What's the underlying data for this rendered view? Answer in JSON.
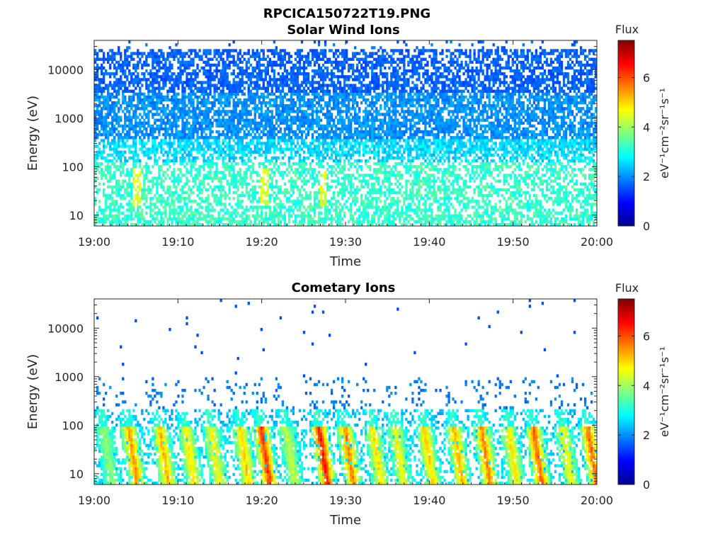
{
  "figure_title": "RPCICA150722T19.PNG",
  "chart_data": [
    {
      "type": "heatmap",
      "title": "Solar Wind Ions",
      "xlabel": "Time",
      "ylabel": "Energy (eV)",
      "x_range": [
        "19:00",
        "20:00"
      ],
      "x_ticks": [
        "19:00",
        "19:10",
        "19:20",
        "19:30",
        "19:40",
        "19:50",
        "20:00"
      ],
      "y_scale": "log",
      "y_range": [
        6,
        40000
      ],
      "y_ticks": [
        "10",
        "100",
        "1000",
        "10000"
      ],
      "colorbar": {
        "title": "Flux",
        "label": "eV⁻¹cm⁻²sr⁻¹s⁻¹",
        "range": [
          0,
          7.5
        ],
        "ticks": [
          "0",
          "2",
          "4",
          "6"
        ],
        "colormap": "jet"
      },
      "description_values": {
        "high_energy_band_flux": 1.5,
        "low_energy_band_flux": 3.2,
        "peak_flux": 4.8
      }
    },
    {
      "type": "heatmap",
      "title": "Cometary Ions",
      "xlabel": "Time",
      "ylabel": "Energy (eV)",
      "x_range": [
        "19:00",
        "20:00"
      ],
      "x_ticks": [
        "19:00",
        "19:10",
        "19:20",
        "19:30",
        "19:40",
        "19:50",
        "20:00"
      ],
      "y_scale": "log",
      "y_range": [
        6,
        40000
      ],
      "y_ticks": [
        "10",
        "100",
        "1000",
        "10000"
      ],
      "colorbar": {
        "title": "Flux",
        "label": "eV⁻¹cm⁻²sr⁻¹s⁻¹",
        "range": [
          0,
          7.5
        ],
        "ticks": [
          "0",
          "2",
          "4",
          "6"
        ],
        "colormap": "jet"
      },
      "burst_times_min": [
        1.5,
        4.5,
        8.2,
        11.3,
        14.3,
        17.8,
        20.3,
        23.3,
        27.2,
        30.3,
        33.6,
        36.3,
        39.8,
        43.3,
        46.6,
        49.8,
        52.8,
        56.3,
        59.3
      ],
      "burst_peak_flux": [
        3.6,
        5.2,
        5.0,
        4.6,
        4.4,
        4.8,
        6.0,
        4.0,
        6.2,
        5.4,
        4.6,
        4.4,
        4.8,
        5.0,
        5.4,
        4.6,
        5.6,
        4.4,
        5.6
      ]
    }
  ]
}
